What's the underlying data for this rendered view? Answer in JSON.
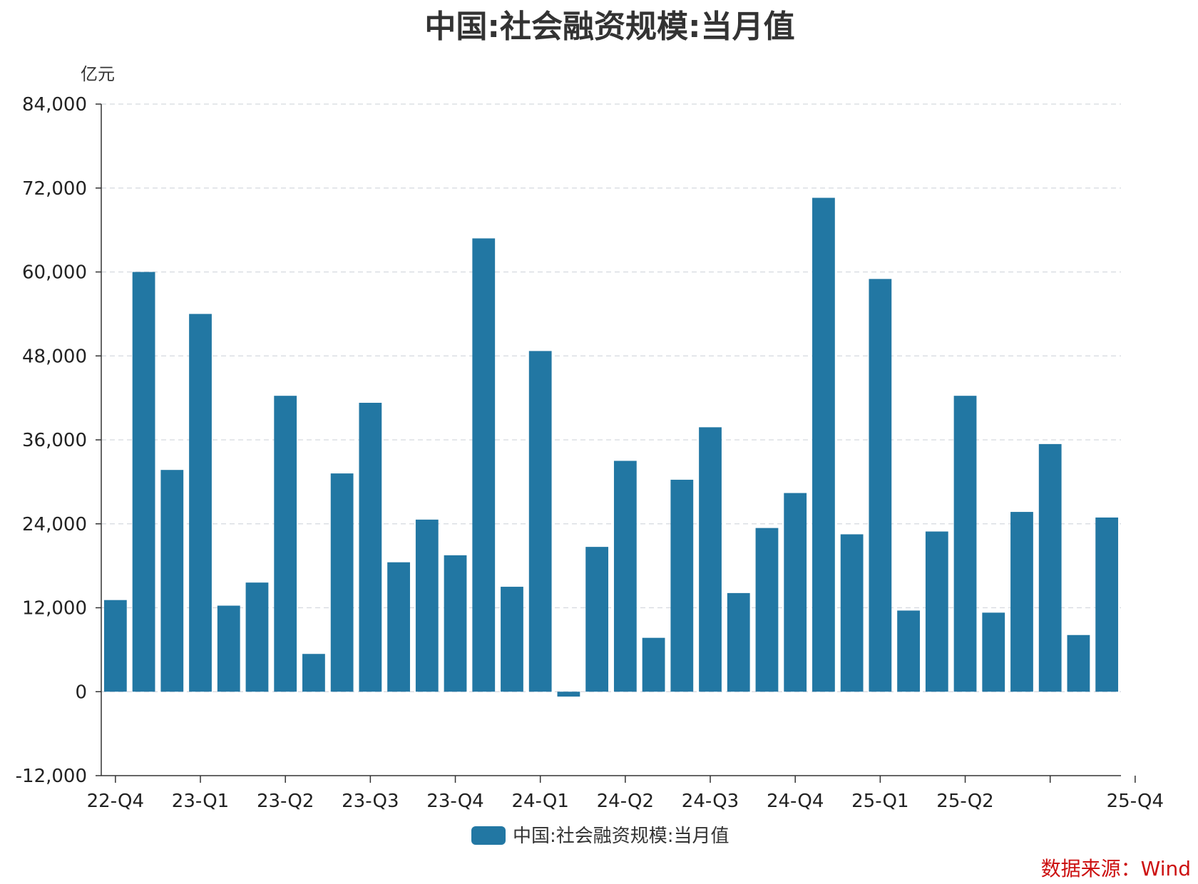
{
  "chart_data": {
    "type": "bar",
    "title": "中国:社会融资规模:当月值",
    "ylabel": "亿元",
    "ylim": [
      -12000,
      84000
    ],
    "yticks": [
      -12000,
      0,
      12000,
      24000,
      36000,
      48000,
      60000,
      72000,
      84000
    ],
    "ytick_labels": [
      "-12,000",
      "0",
      "12,000",
      "24,000",
      "36,000",
      "48,000",
      "60,000",
      "72,000",
      "84,000"
    ],
    "xtick_labels": [
      "22-Q4",
      "23-Q1",
      "23-Q2",
      "23-Q3",
      "23-Q4",
      "24-Q1",
      "24-Q2",
      "24-Q3",
      "24-Q4",
      "25-Q1",
      "25-Q2",
      "",
      "25-Q4"
    ],
    "xtick_positions": [
      0,
      3,
      6,
      9,
      12,
      15,
      18,
      21,
      24,
      27,
      30,
      33,
      36
    ],
    "categories": [
      "2022-12",
      "2023-01",
      "2023-02",
      "2023-03",
      "2023-04",
      "2023-05",
      "2023-06",
      "2023-07",
      "2023-08",
      "2023-09",
      "2023-10",
      "2023-11",
      "2023-12",
      "2024-01",
      "2024-02",
      "2024-03",
      "2024-04",
      "2024-05",
      "2024-06",
      "2024-07",
      "2024-08",
      "2024-09",
      "2024-10",
      "2024-11",
      "2024-12",
      "2025-01",
      "2025-02",
      "2025-03",
      "2025-04",
      "2025-05",
      "2025-06",
      "2025-07",
      "2025-08",
      "2025-09",
      "2025-10",
      "2025-11"
    ],
    "series": [
      {
        "name": "中国:社会融资规模:当月值",
        "color": "#2277a3",
        "values": [
          13100,
          60000,
          31700,
          54000,
          12300,
          15600,
          42300,
          5400,
          31200,
          41300,
          18500,
          24600,
          19500,
          64800,
          15000,
          48700,
          -700,
          20700,
          33000,
          7700,
          30300,
          37800,
          14100,
          23400,
          28400,
          70600,
          22500,
          59000,
          11600,
          22900,
          42300,
          11300,
          25700,
          35400,
          8100,
          24900
        ]
      }
    ],
    "grid": true,
    "legend_position": "bottom"
  },
  "source_text": "数据来源：Wind",
  "source_color": "#cc1111"
}
